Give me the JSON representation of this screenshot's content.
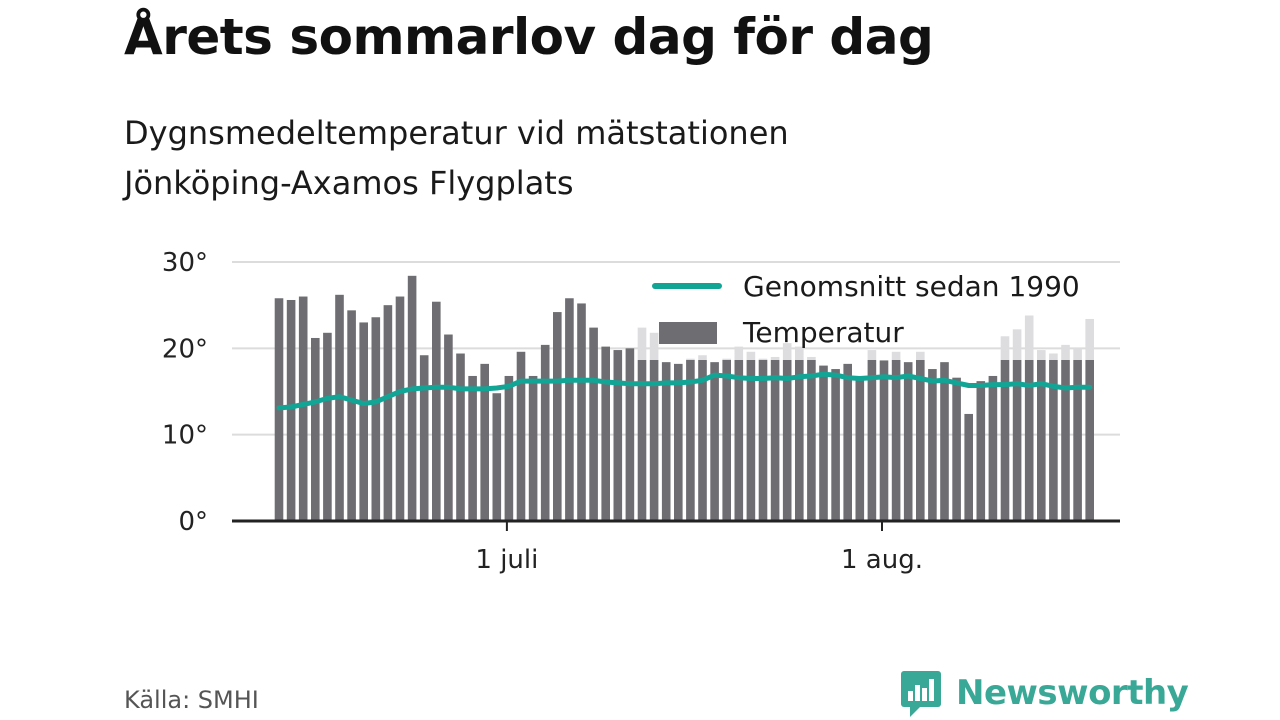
{
  "title": "Årets sommarlov dag för dag",
  "subtitle_line1": "Dygnsmedeltemperatur vid mätstationen",
  "subtitle_line2": "Jönköping-Axamos Flygplats",
  "source": "Källa: SMHI",
  "brand": "Newsworthy",
  "colors": {
    "bar": "#6e6d72",
    "bar_faded": "#dddde0",
    "line": "#12a596",
    "axis": "#222222",
    "grid": "#dcdcdc",
    "brand": "#3aa896"
  },
  "chart_data": {
    "type": "bar",
    "ylim": [
      0,
      30
    ],
    "y_ticks": [
      {
        "value": 0,
        "label": "0°"
      },
      {
        "value": 10,
        "label": "10°"
      },
      {
        "value": 20,
        "label": "20°"
      },
      {
        "value": 30,
        "label": "30°"
      }
    ],
    "x_ticks": [
      {
        "index": 19,
        "label": "1 juli"
      },
      {
        "index": 50,
        "label": "1 aug."
      }
    ],
    "legend": {
      "line_label": "Genomsnitt sedan 1990",
      "bar_label": "Temperatur",
      "position": "top-right"
    },
    "series": [
      {
        "name": "Temperatur",
        "type": "bar",
        "values": [
          25.8,
          25.6,
          26.0,
          21.2,
          21.8,
          26.2,
          24.4,
          23.0,
          23.6,
          25.0,
          26.0,
          28.4,
          19.2,
          25.4,
          21.6,
          19.4,
          16.8,
          18.2,
          14.8,
          16.8,
          19.6,
          16.8,
          20.4,
          24.2,
          25.8,
          25.2,
          22.4,
          20.2,
          19.8,
          20.0,
          22.4,
          21.8,
          18.4,
          18.2,
          18.8,
          19.2,
          18.4,
          18.8,
          20.2,
          19.6,
          18.8,
          19.0,
          20.6,
          20.2,
          19.0,
          18.0,
          17.6,
          18.2,
          16.6,
          19.8,
          18.6,
          19.6,
          18.4,
          19.6,
          17.6,
          18.4,
          16.6,
          12.4,
          16.2,
          16.8,
          21.4,
          22.2,
          23.8,
          19.8,
          19.4,
          20.4,
          20.0,
          23.4
        ]
      },
      {
        "name": "Genomsnitt sedan 1990",
        "type": "line",
        "values": [
          13.1,
          13.2,
          13.5,
          13.8,
          14.2,
          14.4,
          14.0,
          13.6,
          13.8,
          14.4,
          15.0,
          15.3,
          15.4,
          15.5,
          15.5,
          15.3,
          15.3,
          15.3,
          15.4,
          15.6,
          16.2,
          16.2,
          16.2,
          16.2,
          16.3,
          16.3,
          16.3,
          16.1,
          16.0,
          15.9,
          15.9,
          15.9,
          16.0,
          16.0,
          16.1,
          16.3,
          16.9,
          16.8,
          16.6,
          16.5,
          16.5,
          16.6,
          16.5,
          16.7,
          16.8,
          17.0,
          16.9,
          16.6,
          16.5,
          16.6,
          16.7,
          16.6,
          16.8,
          16.5,
          16.2,
          16.3,
          16.0,
          15.7,
          15.7,
          15.8,
          15.8,
          15.9,
          15.7,
          15.9,
          15.6,
          15.4,
          15.5,
          15.5
        ]
      }
    ]
  }
}
